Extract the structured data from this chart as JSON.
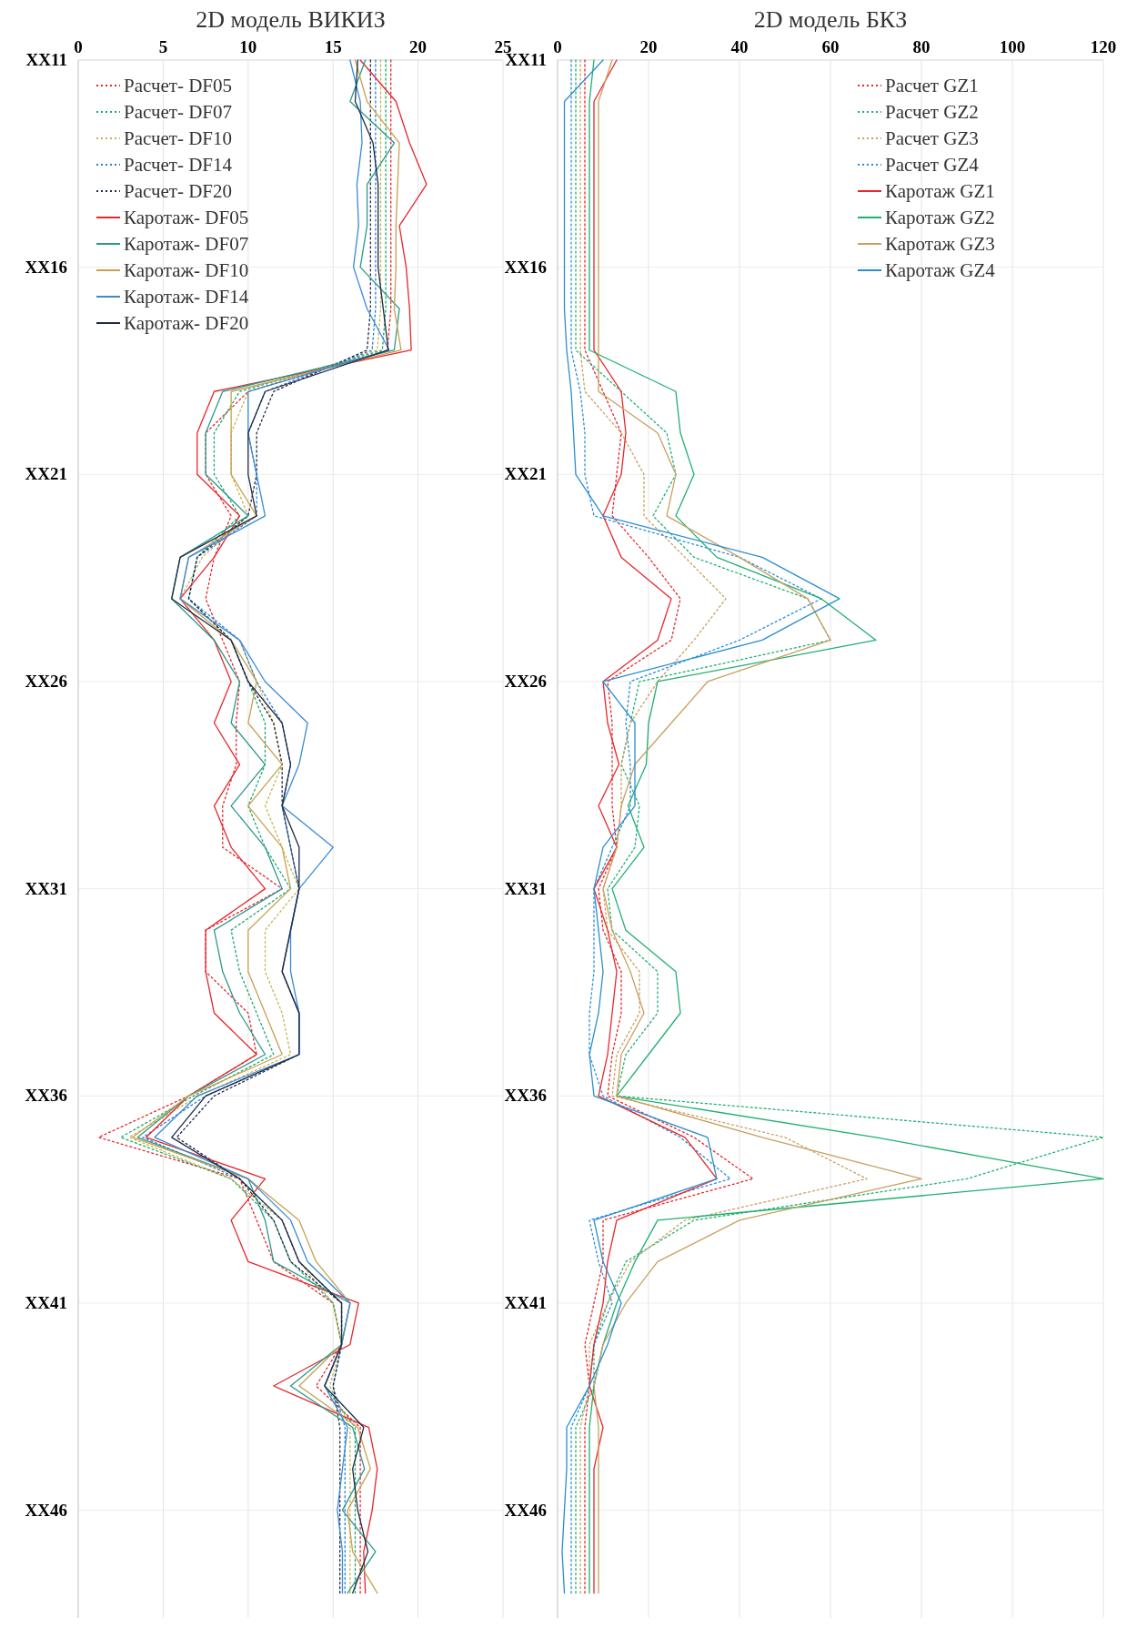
{
  "chart_data": [
    {
      "type": "line",
      "title": "2D модель ВИКИЗ",
      "orientation": "horizontal",
      "grid": true,
      "legend": "top left",
      "xlim": [
        0,
        25
      ],
      "xticks": [
        0,
        5,
        10,
        15,
        20,
        25
      ],
      "categories": [
        "XX11",
        null,
        null,
        null,
        null,
        "XX16",
        null,
        null,
        null,
        null,
        "XX21",
        null,
        null,
        null,
        null,
        "XX26",
        null,
        null,
        null,
        null,
        "XX31",
        null,
        null,
        null,
        null,
        "XX36",
        null,
        null,
        null,
        null,
        "XX41",
        null,
        null,
        null,
        null,
        "XX46",
        null,
        null
      ],
      "series": [
        {
          "name": "Расчет- DF05",
          "color": "#e8262a",
          "line_style": "dotted",
          "values": [
            18.4,
            18.4,
            18.4,
            18.4,
            18.4,
            18.4,
            18.4,
            18.2,
            10,
            7.5,
            7.5,
            9,
            8,
            7.5,
            8.5,
            9.5,
            9.3,
            9.3,
            8.5,
            8.5,
            12,
            7.5,
            7.5,
            10,
            10.5,
            6.5,
            1.2,
            9.5,
            10.5,
            11.5,
            15,
            15.5,
            14,
            16.6,
            16.6,
            16.6,
            16.6,
            16.6
          ]
        },
        {
          "name": "Расчет- DF07",
          "color": "#1aa86a",
          "line_style": "dotted",
          "values": [
            18.1,
            18.1,
            18.1,
            18.1,
            18.1,
            18.1,
            18.1,
            17.9,
            9.5,
            8,
            8,
            9.5,
            7,
            6.5,
            9,
            10,
            11,
            11,
            10,
            11,
            12.5,
            9,
            9.5,
            10.5,
            11.5,
            6.8,
            2.5,
            9,
            11.5,
            12.5,
            15,
            15.5,
            14.5,
            16.3,
            16.3,
            16.3,
            16.3,
            16.3
          ]
        },
        {
          "name": "Расчет- DF10",
          "color": "#c8b450",
          "line_style": "dotted",
          "values": [
            17.8,
            17.8,
            17.8,
            17.8,
            17.8,
            17.8,
            17.8,
            17.6,
            10,
            9,
            9,
            10,
            7.3,
            6,
            9.5,
            10.5,
            11.5,
            12,
            11,
            12,
            13,
            11,
            11,
            12,
            12.5,
            7.1,
            3,
            9,
            12,
            13,
            15,
            15.5,
            14.8,
            16,
            16,
            16,
            16,
            16
          ]
        },
        {
          "name": "Расчет- DF14",
          "color": "#2a7fd4",
          "line_style": "dotted",
          "values": [
            17.5,
            17.5,
            17.5,
            17.5,
            17.5,
            17.5,
            17.5,
            17.3,
            11,
            10,
            10.5,
            10.5,
            7,
            6.5,
            9.5,
            10.5,
            12,
            12.5,
            12,
            12.5,
            13,
            12.5,
            12,
            13,
            13,
            7.5,
            3.8,
            9.5,
            12,
            13,
            15.5,
            15.5,
            15,
            15.7,
            15.7,
            15.7,
            15.7,
            15.7
          ]
        },
        {
          "name": "Расчет- DF20",
          "color": "#1f2a44",
          "line_style": "dotted",
          "values": [
            17.2,
            17.2,
            17.2,
            17.2,
            17.2,
            17.2,
            17.2,
            17,
            11.5,
            10.5,
            10.5,
            10,
            7,
            6.5,
            9,
            10,
            11.5,
            12,
            12,
            12.5,
            13,
            12.5,
            12,
            13,
            13,
            8,
            5.8,
            9.5,
            11.5,
            12.5,
            15.5,
            15.5,
            15,
            15.4,
            15.4,
            15.4,
            15.4,
            15.4
          ]
        },
        {
          "name": "Каротаж- DF05",
          "color": "#e8262a",
          "line_style": "solid",
          "values": [
            16.6,
            18.7,
            19.5,
            20.5,
            18.9,
            19.3,
            19.5,
            19.6,
            8,
            7,
            7,
            9.5,
            8,
            6,
            8,
            9,
            8,
            9.5,
            8,
            9,
            11,
            7.5,
            7.5,
            8,
            10.5,
            6.5,
            4,
            11,
            9,
            10,
            16.5,
            16,
            11.5,
            17.1,
            17.6,
            17.3,
            16.8,
            16.9
          ]
        },
        {
          "name": "Каротаж- DF07",
          "color": "#2a9a8a",
          "line_style": "solid",
          "values": [
            16.9,
            16,
            18.6,
            17,
            17,
            16.6,
            18.9,
            18.6,
            8.5,
            7.5,
            7.5,
            10,
            6,
            5.5,
            8,
            9.5,
            9,
            11,
            9,
            11,
            12,
            8,
            8.5,
            9.5,
            11,
            6.5,
            3.5,
            10,
            11,
            11.5,
            16,
            15.5,
            12.5,
            16.15,
            16.85,
            15.55,
            17.5,
            15.85
          ]
        },
        {
          "name": "Каротаж- DF10",
          "color": "#c8a050",
          "line_style": "solid",
          "values": [
            16.3,
            17,
            18.9,
            18.8,
            18.7,
            18.7,
            18.6,
            19,
            9,
            9,
            9,
            10.5,
            6.5,
            6,
            9,
            10.5,
            10,
            12,
            10,
            12,
            12.5,
            10,
            10,
            11,
            12,
            6.5,
            3.2,
            10,
            13,
            14,
            16,
            15.5,
            13,
            16.45,
            17.2,
            15.85,
            16.15,
            17.6
          ]
        },
        {
          "name": "Каротаж- DF14",
          "color": "#3a8ad8",
          "line_style": "solid",
          "values": [
            16,
            16.6,
            16.7,
            16.4,
            16.5,
            16.2,
            17,
            18.3,
            10,
            10,
            10.5,
            11,
            6.5,
            6,
            9.5,
            11,
            13.5,
            13,
            12,
            15,
            13,
            12.5,
            12.5,
            13,
            13,
            7,
            4.5,
            10,
            12.5,
            13.5,
            16,
            15.5,
            14.5,
            15.85,
            15.55,
            15.25,
            15.55,
            15.55
          ]
        },
        {
          "name": "Каротаж- DF20",
          "color": "#1f2a44",
          "line_style": "solid",
          "values": [
            16.45,
            16.3,
            17.35,
            17.65,
            17.65,
            17.65,
            17.95,
            18.25,
            11,
            10,
            10,
            10.5,
            6,
            5.5,
            9,
            10,
            12,
            12.5,
            12,
            13,
            13,
            12.5,
            12,
            13,
            13,
            7.5,
            5.5,
            9.5,
            12,
            13,
            15.5,
            15.5,
            14.5,
            16.8,
            16.15,
            16.45,
            17.05,
            16.15
          ]
        }
      ]
    },
    {
      "type": "line",
      "title": "2D модель БКЗ",
      "orientation": "horizontal",
      "grid": true,
      "legend": "top right",
      "xlim": [
        0,
        120
      ],
      "xticks": [
        0,
        20,
        40,
        60,
        80,
        100,
        120
      ],
      "categories": [
        "XX11",
        null,
        null,
        null,
        null,
        "XX16",
        null,
        null,
        null,
        null,
        "XX21",
        null,
        null,
        null,
        null,
        "XX26",
        null,
        null,
        null,
        null,
        "XX31",
        null,
        null,
        null,
        null,
        "XX36",
        null,
        null,
        null,
        null,
        "XX41",
        null,
        null,
        null,
        null,
        "XX46",
        null,
        null
      ],
      "series": [
        {
          "name": "Расчет GZ1",
          "color": "#e8262a",
          "line_style": "dotted",
          "values": [
            6,
            6,
            6,
            6,
            6,
            6,
            6,
            6,
            10,
            14,
            13,
            12,
            20,
            27,
            25,
            11,
            12,
            12,
            12,
            13,
            9,
            10,
            14,
            14,
            12,
            11,
            30,
            43,
            10,
            10,
            8,
            6,
            7,
            6,
            6,
            6,
            6,
            6
          ]
        },
        {
          "name": "Расчет GZ2",
          "color": "#1fb070",
          "line_style": "dotted",
          "values": [
            4,
            4,
            4,
            4,
            4,
            4,
            4,
            4,
            14,
            24,
            26,
            21,
            30,
            55,
            60,
            18,
            16,
            14,
            18,
            17,
            11,
            12,
            22,
            22,
            15,
            13,
            120,
            90,
            30,
            15,
            11,
            8,
            8,
            4,
            4,
            4,
            4,
            4
          ]
        },
        {
          "name": "Расчет GZ3",
          "color": "#c8a060",
          "line_style": "dotted",
          "values": [
            5,
            5,
            5,
            5,
            5,
            5,
            5,
            5,
            6,
            14,
            19,
            19,
            28,
            37,
            30,
            22,
            16,
            14,
            14,
            13,
            10,
            11,
            18,
            18,
            13,
            12,
            50,
            68,
            28,
            16,
            11,
            7,
            7,
            5,
            5,
            5,
            5,
            5
          ]
        },
        {
          "name": "Расчет GZ4",
          "color": "#2a8fd0",
          "line_style": "dotted",
          "values": [
            3,
            3,
            3,
            3,
            3,
            3,
            3,
            3,
            5,
            6,
            6,
            8,
            40,
            58,
            40,
            16,
            15,
            16,
            16,
            12,
            8,
            8,
            8,
            7,
            7,
            10,
            27,
            38,
            7,
            9,
            12,
            8,
            7,
            3,
            3,
            3,
            3,
            3
          ]
        },
        {
          "name": "Каротаж GZ1",
          "color": "#e8262a",
          "line_style": "solid",
          "values": [
            13,
            8,
            8,
            8,
            8,
            8,
            8,
            8,
            14,
            15,
            14,
            10,
            14,
            25,
            22,
            10,
            11,
            13.5,
            9,
            13,
            8,
            11,
            13,
            12,
            11,
            9,
            28,
            35,
            13,
            11,
            10,
            8,
            7,
            10,
            8,
            8,
            8,
            8
          ]
        },
        {
          "name": "Каротаж GZ2",
          "color": "#1fb070",
          "line_style": "solid",
          "values": [
            8,
            7,
            7,
            7,
            7,
            7,
            7,
            7,
            26,
            27,
            30,
            26,
            35,
            58,
            70,
            22,
            20,
            19.5,
            15.5,
            19,
            12,
            15,
            26,
            27,
            20,
            13,
            70,
            120,
            22,
            17,
            13,
            10,
            8,
            7,
            7,
            7,
            7,
            7
          ]
        },
        {
          "name": "Каротаж GZ3",
          "color": "#c8a060",
          "line_style": "solid",
          "values": [
            12,
            9,
            9,
            9,
            9,
            9,
            9,
            9,
            9,
            22,
            26,
            24,
            40,
            55,
            60,
            33,
            25,
            17,
            14,
            13,
            10,
            12,
            16,
            19,
            14,
            13,
            45,
            80,
            40,
            22,
            15,
            10,
            8,
            9,
            9,
            9,
            9,
            9
          ]
        },
        {
          "name": "Каротаж GZ4",
          "color": "#2a8fd0",
          "line_style": "solid",
          "values": [
            10,
            1.5,
            1.5,
            1.5,
            1.5,
            1.5,
            1.5,
            2,
            3,
            3.5,
            4,
            10,
            45,
            62,
            45,
            10,
            17,
            17,
            17,
            10,
            8,
            9,
            10,
            9,
            7,
            8,
            33,
            35,
            8,
            10,
            14,
            11,
            7,
            2,
            2,
            1.5,
            1,
            1.5
          ]
        }
      ]
    }
  ]
}
